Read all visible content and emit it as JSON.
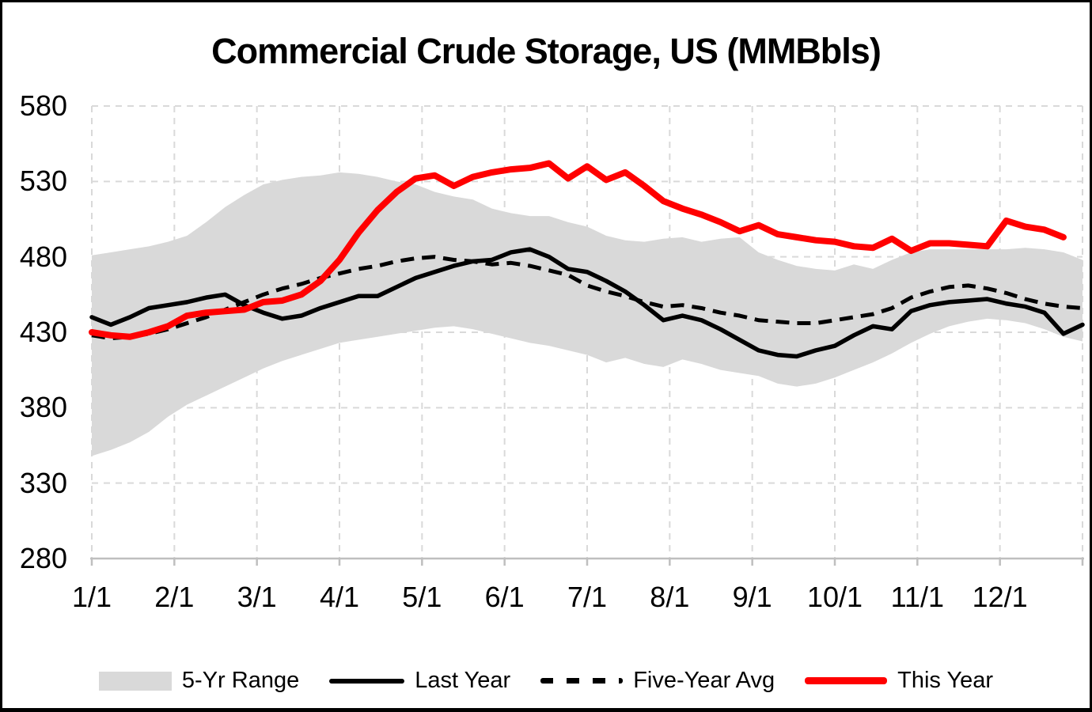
{
  "title": "Commercial Crude Storage, US (MMBbls)",
  "legend": {
    "items": [
      {
        "label": "5-Yr Range",
        "swatch": "gray-band",
        "color": "#d9d9d9"
      },
      {
        "label": "Last Year",
        "swatch": "black-solid-line",
        "color": "#000000"
      },
      {
        "label": "Five-Year Avg",
        "swatch": "black-dashed-line",
        "color": "#000000"
      },
      {
        "label": "This Year",
        "swatch": "red-thick-line",
        "color": "#ff0000"
      }
    ]
  },
  "chart_data": {
    "type": "line",
    "title": "Commercial Crude Storage, US (MMBbls)",
    "x_unit": "weekly (Jan 1 - Dec 31)",
    "x_ticks": [
      "1/1",
      "2/1",
      "3/1",
      "4/1",
      "5/1",
      "6/1",
      "7/1",
      "8/1",
      "9/1",
      "10/1",
      "11/1",
      "12/1"
    ],
    "x_ticks_evenly_spaced": true,
    "y_ticks": [
      580,
      530,
      480,
      430,
      380,
      330,
      280
    ],
    "ylim": [
      280,
      580
    ],
    "xlim_weeks": [
      0,
      52
    ],
    "grid": "dashed-light-gray",
    "legend_position": "bottom",
    "colors": {
      "band": "#d9d9d9",
      "grid": "#d9d9d9",
      "axis": "#bfbfbf",
      "black": "#000000",
      "red": "#ff0000"
    },
    "series": [
      {
        "name": "5-Yr Range",
        "type": "band",
        "color": "#d9d9d9",
        "top": [
          481,
          483,
          485,
          487,
          490,
          494,
          503,
          513,
          521,
          528,
          531,
          533,
          534,
          536,
          535,
          533,
          530,
          528,
          523,
          520,
          518,
          512,
          509,
          507,
          507,
          503,
          500,
          494,
          491,
          490,
          492,
          493,
          490,
          492,
          493,
          483,
          478,
          474,
          472,
          471,
          475,
          472,
          478,
          483,
          485,
          485,
          485,
          485,
          485,
          486,
          485,
          483,
          478
        ],
        "bottom": [
          348,
          352,
          357,
          364,
          374,
          382,
          388,
          394,
          400,
          406,
          411,
          415,
          419,
          423,
          425,
          427,
          429,
          431,
          433,
          434,
          432,
          429,
          426,
          423,
          421,
          418,
          415,
          410,
          413,
          409,
          407,
          412,
          409,
          405,
          403,
          401,
          396,
          394,
          396,
          400,
          405,
          410,
          416,
          423,
          429,
          434,
          437,
          439,
          438,
          436,
          432,
          427,
          424
        ]
      },
      {
        "name": "Five-Year Avg",
        "type": "line",
        "style": "dashed",
        "color": "#000000",
        "values": [
          428,
          426,
          427,
          429,
          432,
          436,
          440,
          445,
          450,
          455,
          459,
          462,
          466,
          469,
          472,
          474,
          477,
          479,
          480,
          478,
          477,
          475,
          476,
          474,
          471,
          468,
          461,
          457,
          454,
          450,
          447,
          448,
          446,
          443,
          441,
          438,
          437,
          436,
          436,
          438,
          440,
          442,
          446,
          453,
          457,
          460,
          461,
          459,
          456,
          452,
          449,
          447,
          446
        ]
      },
      {
        "name": "Last Year",
        "type": "line",
        "style": "solid",
        "color": "#000000",
        "values": [
          440,
          435,
          440,
          446,
          448,
          450,
          453,
          455,
          448,
          443,
          439,
          441,
          446,
          450,
          454,
          454,
          460,
          466,
          470,
          474,
          477,
          478,
          483,
          485,
          480,
          472,
          470,
          464,
          457,
          448,
          438,
          441,
          438,
          432,
          425,
          418,
          415,
          414,
          418,
          421,
          428,
          434,
          432,
          444,
          448,
          450,
          451,
          452,
          449,
          447,
          443,
          429,
          435
        ]
      },
      {
        "name": "This Year",
        "type": "line",
        "style": "solid-thick",
        "color": "#ff0000",
        "values": [
          430,
          428,
          427,
          430,
          434,
          441,
          443,
          444,
          445,
          450,
          451,
          455,
          464,
          478,
          496,
          511,
          523,
          532,
          534,
          527,
          533,
          536,
          538,
          539,
          542,
          532,
          540,
          531,
          536,
          527,
          517,
          512,
          508,
          503,
          497,
          501,
          495,
          493,
          491,
          490,
          487,
          486,
          492,
          484,
          489,
          489,
          488,
          487,
          504,
          500,
          498,
          493
        ]
      }
    ]
  }
}
